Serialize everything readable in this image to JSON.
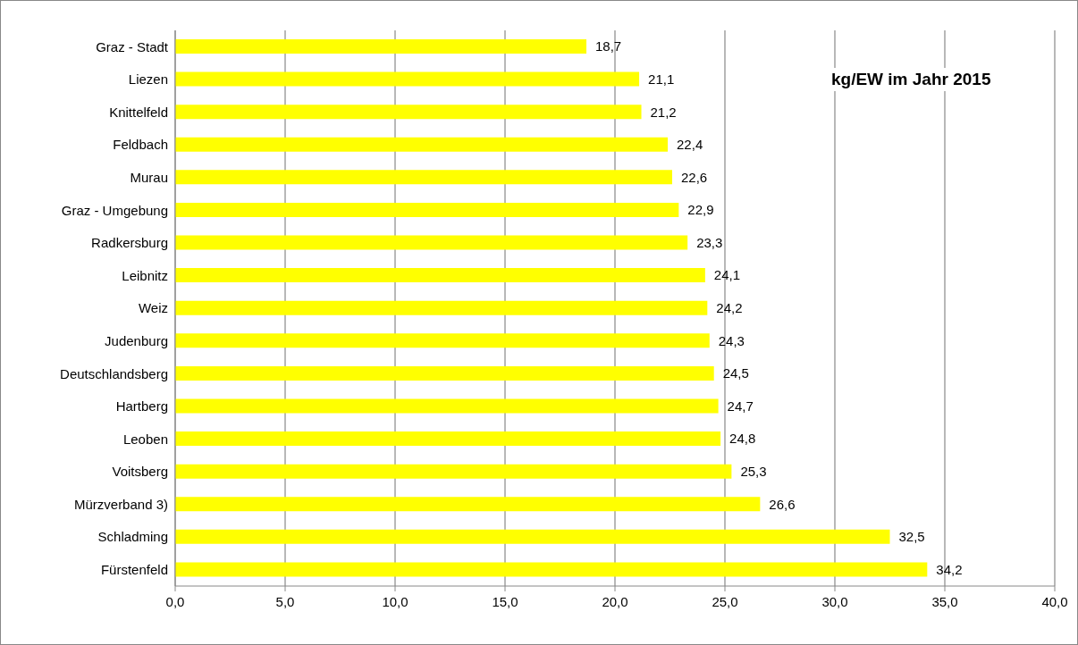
{
  "chart_data": {
    "type": "bar",
    "orientation": "horizontal",
    "title": "kg/EW im Jahr 2015",
    "categories": [
      "Graz - Stadt",
      "Liezen",
      "Knittelfeld",
      "Feldbach",
      "Murau",
      "Graz - Umgebung",
      "Radkersburg",
      "Leibnitz",
      "Weiz",
      "Judenburg",
      "Deutschlandsberg",
      "Hartberg",
      "Leoben",
      "Voitsberg",
      "Mürzverband 3)",
      "Schladming",
      "Fürstenfeld"
    ],
    "values": [
      18.7,
      21.1,
      21.2,
      22.4,
      22.6,
      22.9,
      23.3,
      24.1,
      24.2,
      24.3,
      24.5,
      24.7,
      24.8,
      25.3,
      26.6,
      32.5,
      34.2
    ],
    "value_labels": [
      "18,7",
      "21,1",
      "21,2",
      "22,4",
      "22,6",
      "22,9",
      "23,3",
      "24,1",
      "24,2",
      "24,3",
      "24,5",
      "24,7",
      "24,8",
      "25,3",
      "26,6",
      "32,5",
      "34,2"
    ],
    "color": "#ffff00",
    "xlim": [
      0,
      40
    ],
    "xticks": [
      {
        "value": 0,
        "label": "0,0"
      },
      {
        "value": 5,
        "label": "5,0"
      },
      {
        "value": 10,
        "label": "10,0"
      },
      {
        "value": 15,
        "label": "15,0"
      },
      {
        "value": 20,
        "label": "20,0"
      },
      {
        "value": 25,
        "label": "25,0"
      },
      {
        "value": 30,
        "label": "30,0"
      },
      {
        "value": 35,
        "label": "35,0"
      },
      {
        "value": 40,
        "label": "40,0"
      }
    ],
    "grid": "x",
    "legend": false
  }
}
